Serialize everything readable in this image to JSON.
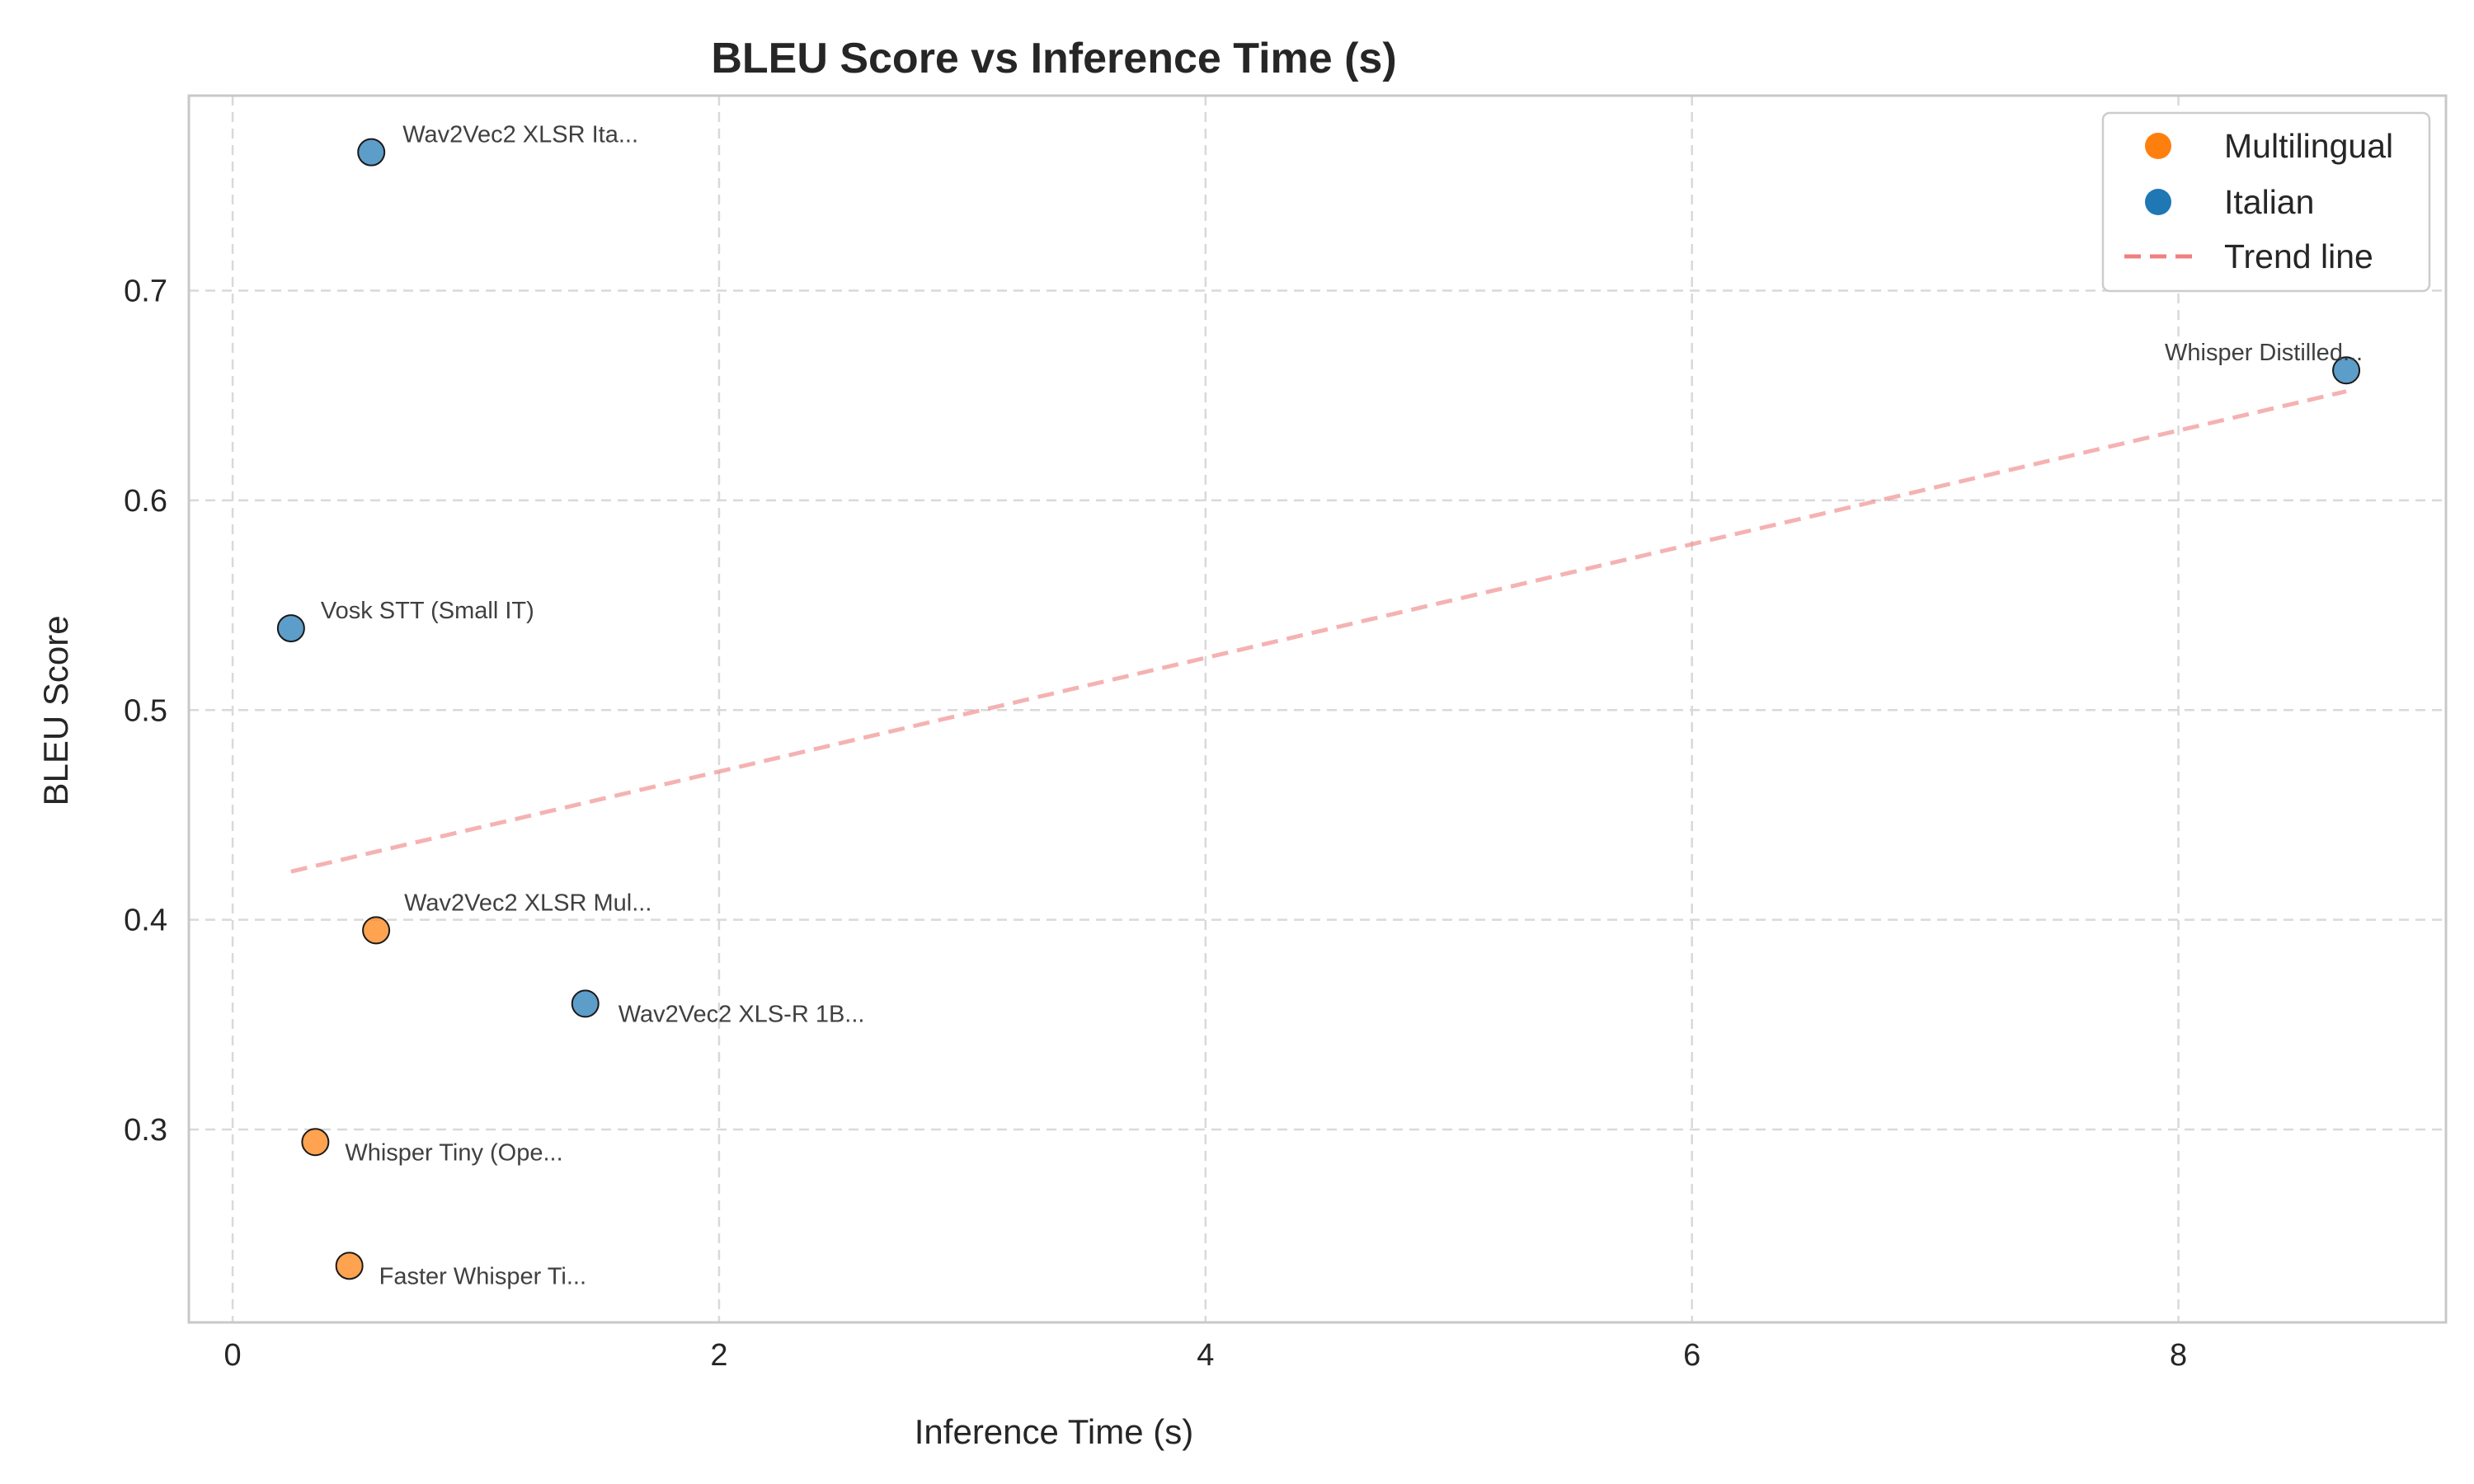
{
  "chart_data": {
    "type": "scatter",
    "title": "BLEU Score vs Inference Time (s)",
    "xlabel": "Inference Time (s)",
    "ylabel": "BLEU Score",
    "xlim": [
      -0.18,
      9.1
    ],
    "ylim": [
      0.208,
      0.793
    ],
    "xticks": [
      0,
      2,
      4,
      6,
      8
    ],
    "yticks": [
      0.3,
      0.4,
      0.5,
      0.6,
      0.7
    ],
    "grid": true,
    "legend_position": "top-right",
    "series": [
      {
        "name": "Multilingual",
        "color": "#ff7f0e",
        "points": [
          {
            "x": 0.59,
            "y": 0.395,
            "label": "Wav2Vec2 XLSR Mul..."
          },
          {
            "x": 0.34,
            "y": 0.294,
            "label": "Whisper Tiny (Ope..."
          },
          {
            "x": 0.48,
            "y": 0.235,
            "label": "Faster Whisper Ti..."
          }
        ]
      },
      {
        "name": "Italian",
        "color": "#1f77b4",
        "points": [
          {
            "x": 0.57,
            "y": 0.766,
            "label": "Wav2Vec2 XLSR Ita..."
          },
          {
            "x": 0.24,
            "y": 0.539,
            "label": "Vosk STT (Small IT)"
          },
          {
            "x": 1.45,
            "y": 0.36,
            "label": "Wav2Vec2 XLS-R 1B..."
          },
          {
            "x": 8.69,
            "y": 0.662,
            "label": "Whisper Distilled..."
          }
        ]
      }
    ],
    "trend_line": {
      "name": "Trend line",
      "color": "#f08080",
      "x": [
        0.24,
        8.69
      ],
      "y": [
        0.423,
        0.652
      ]
    }
  }
}
